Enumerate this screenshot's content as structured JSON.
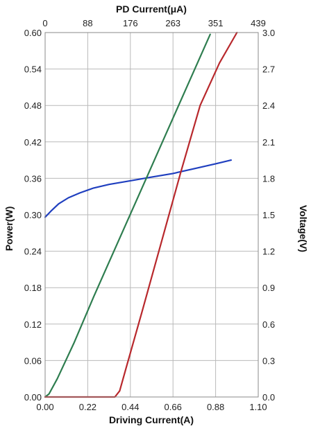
{
  "chart_data": {
    "type": "line",
    "axes": {
      "x_bottom": {
        "label": "Driving Current(A)",
        "range": [
          0,
          1.1
        ],
        "ticks": [
          "0.00",
          "0.22",
          "0.44",
          "0.66",
          "0.88",
          "1.10"
        ]
      },
      "x_top": {
        "label": "PD Current(μA)",
        "range": [
          0,
          439
        ],
        "ticks": [
          "0",
          "88",
          "176",
          "263",
          "351",
          "439"
        ]
      },
      "y_left": {
        "label": "Power(W)",
        "range": [
          0,
          0.6
        ],
        "ticks": [
          "0.00",
          "0.06",
          "0.12",
          "0.18",
          "0.24",
          "0.30",
          "0.36",
          "0.42",
          "0.48",
          "0.54",
          "0.60"
        ]
      },
      "y_right": {
        "label": "Voltage(V)",
        "range": [
          0,
          3.0
        ],
        "ticks": [
          "0.0",
          "0.3",
          "0.6",
          "0.9",
          "1.2",
          "1.5",
          "1.8",
          "2.1",
          "2.4",
          "2.7",
          "3.0"
        ]
      }
    },
    "grid": true,
    "series": [
      {
        "color": "#1f3fbf",
        "x_axis": "x_bottom",
        "y_axis": "y_right",
        "points": [
          [
            0,
            1.48
          ],
          [
            0.03,
            1.53
          ],
          [
            0.07,
            1.59
          ],
          [
            0.12,
            1.64
          ],
          [
            0.18,
            1.68
          ],
          [
            0.25,
            1.72
          ],
          [
            0.33,
            1.75
          ],
          [
            0.44,
            1.78
          ],
          [
            0.55,
            1.81
          ],
          [
            0.66,
            1.84
          ],
          [
            0.77,
            1.88
          ],
          [
            0.88,
            1.92
          ],
          [
            0.96,
            1.95
          ]
        ]
      },
      {
        "color": "#2e7d4f",
        "x_axis": "x_top",
        "y_axis": "y_left",
        "points": [
          [
            0,
            0
          ],
          [
            8,
            0.005
          ],
          [
            25,
            0.03
          ],
          [
            60,
            0.09
          ],
          [
            100,
            0.165
          ],
          [
            150,
            0.255
          ],
          [
            200,
            0.345
          ],
          [
            250,
            0.435
          ],
          [
            300,
            0.525
          ],
          [
            340,
            0.597
          ]
        ]
      },
      {
        "color": "#b8282c",
        "x_axis": "x_bottom",
        "y_axis": "y_left",
        "points": [
          [
            0,
            0
          ],
          [
            0.36,
            0
          ],
          [
            0.385,
            0.01
          ],
          [
            0.42,
            0.05
          ],
          [
            0.5,
            0.14
          ],
          [
            0.6,
            0.255
          ],
          [
            0.7,
            0.37
          ],
          [
            0.8,
            0.48
          ],
          [
            0.9,
            0.55
          ],
          [
            0.99,
            0.6
          ]
        ]
      }
    ]
  }
}
